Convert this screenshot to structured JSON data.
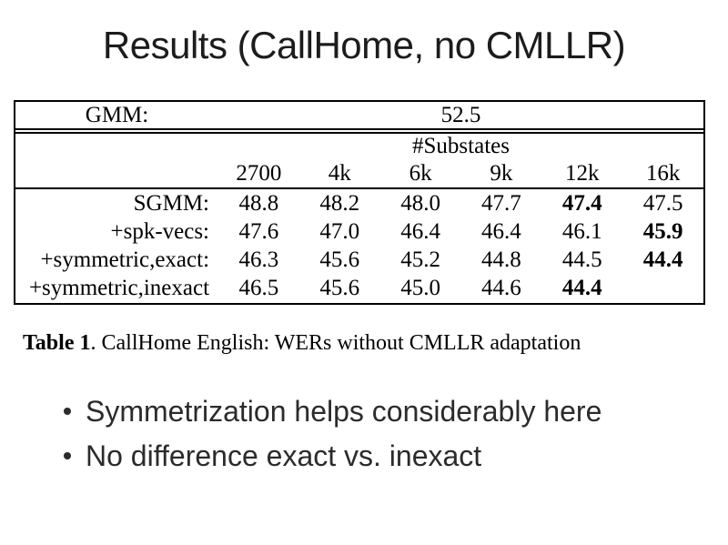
{
  "slide": {
    "title": "Results (CallHome, no CMLLR)"
  },
  "table": {
    "gmm_label": "GMM:",
    "gmm_value": "52.5",
    "substates_header": "#Substates",
    "columns": [
      "2700",
      "4k",
      "6k",
      "9k",
      "12k",
      "16k"
    ],
    "rows": [
      {
        "label": "SGMM:",
        "values": [
          "48.8",
          "48.2",
          "48.0",
          "47.7",
          "47.4",
          "47.5"
        ],
        "bold": [
          false,
          false,
          false,
          false,
          true,
          false
        ]
      },
      {
        "label": "+spk-vecs:",
        "values": [
          "47.6",
          "47.0",
          "46.4",
          "46.4",
          "46.1",
          "45.9"
        ],
        "bold": [
          false,
          false,
          false,
          false,
          false,
          true
        ]
      },
      {
        "label": "+symmetric,exact:",
        "values": [
          "46.3",
          "45.6",
          "45.2",
          "44.8",
          "44.5",
          "44.4"
        ],
        "bold": [
          false,
          false,
          false,
          false,
          false,
          true
        ]
      },
      {
        "label": "+symmetric,inexact",
        "values": [
          "46.5",
          "45.6",
          "45.0",
          "44.6",
          "44.4",
          ""
        ],
        "bold": [
          false,
          false,
          false,
          false,
          true,
          false
        ]
      }
    ]
  },
  "caption": {
    "label": "Table 1",
    "rest": ". CallHome English: WERs without CMLLR adaptation"
  },
  "bullets": [
    "Symmetrization helps considerably here",
    "No difference exact vs. inexact"
  ]
}
